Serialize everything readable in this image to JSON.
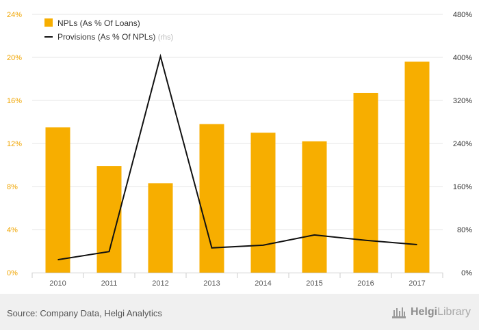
{
  "chart_data": {
    "type": "bar+line",
    "categories": [
      "2010",
      "2011",
      "2012",
      "2013",
      "2014",
      "2015",
      "2016",
      "2017"
    ],
    "series": [
      {
        "name": "NPLs (As % Of Loans)",
        "type": "bar",
        "axis": "left",
        "values": [
          13.5,
          9.9,
          8.3,
          13.8,
          13.0,
          12.2,
          16.7,
          19.6
        ]
      },
      {
        "name": "Provisions (As % Of NPLs)",
        "axis_note": "(rhs)",
        "type": "line",
        "axis": "right",
        "values": [
          24,
          39,
          402,
          46,
          51,
          70,
          60,
          52
        ]
      }
    ],
    "y_left": {
      "min": 0,
      "max": 24,
      "ticks": [
        "0%",
        "4%",
        "8%",
        "12%",
        "16%",
        "20%",
        "24%"
      ],
      "tick_values": [
        0,
        4,
        8,
        12,
        16,
        20,
        24
      ]
    },
    "y_right": {
      "min": 0,
      "max": 480,
      "ticks": [
        "0%",
        "80%",
        "160%",
        "240%",
        "320%",
        "400%",
        "480%"
      ],
      "tick_values": [
        0,
        80,
        160,
        240,
        320,
        400,
        480
      ]
    },
    "grid": true,
    "legend_position": "top-left",
    "colors": {
      "bar": "#f7ae00",
      "line": "#111111",
      "left_axis_text": "#f0a500",
      "right_axis_text": "#333333",
      "grid": "#e6e6e6"
    }
  },
  "footer": {
    "source": "Source: Company Data, Helgi Analytics",
    "brand_main": "Helgi",
    "brand_sub": "Library",
    "logo_icon": "helgi-library-logo-icon"
  }
}
